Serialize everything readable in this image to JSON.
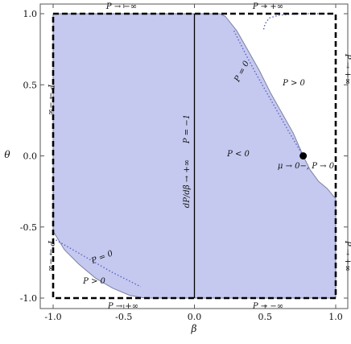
{
  "chart_data": {
    "type": "area",
    "title": "",
    "xlabel": "β",
    "ylabel": "θ",
    "xlim": [
      -1.0,
      1.0
    ],
    "ylim": [
      -1.0,
      1.0
    ],
    "grid": false,
    "x_ticks": [
      "-1.0",
      "-0.5",
      "0.0",
      "0.5",
      "1.0"
    ],
    "y_ticks": [
      "-1.0",
      "-0.5",
      "0.0",
      "0.5",
      "1.0"
    ],
    "colors": {
      "region_fill": "#c5c9ef",
      "region_edge": "#7b80a3",
      "dotted_curve": "#5a63c4",
      "ink": "#000000"
    },
    "shaded_region_boundary": [
      [
        -1.0,
        1.0
      ],
      [
        0.18,
        1.0
      ],
      [
        0.22,
        0.98
      ],
      [
        0.3,
        0.88
      ],
      [
        0.38,
        0.74
      ],
      [
        0.46,
        0.6
      ],
      [
        0.54,
        0.44
      ],
      [
        0.62,
        0.3
      ],
      [
        0.7,
        0.16
      ],
      [
        0.77,
        0.0
      ],
      [
        0.82,
        -0.1
      ],
      [
        0.88,
        -0.18
      ],
      [
        0.94,
        -0.23
      ],
      [
        0.99,
        -0.29
      ],
      [
        1.0,
        -0.3
      ],
      [
        1.0,
        -1.0
      ],
      [
        0.0,
        -1.0
      ],
      [
        -0.35,
        -1.0
      ],
      [
        -0.46,
        -0.98
      ],
      [
        -0.58,
        -0.93
      ],
      [
        -0.7,
        -0.86
      ],
      [
        -0.82,
        -0.76
      ],
      [
        -0.92,
        -0.66
      ],
      [
        -1.0,
        -0.53
      ]
    ],
    "dotted_curves": [
      {
        "points": [
          [
            0.49,
            0.89
          ],
          [
            0.5,
            0.93
          ],
          [
            0.53,
            0.97
          ],
          [
            0.6,
            0.99
          ],
          [
            0.72,
            1.0
          ],
          [
            0.86,
            1.0
          ],
          [
            0.98,
            1.0
          ]
        ]
      },
      {
        "points": [
          [
            0.28,
            0.88
          ],
          [
            0.36,
            0.72
          ],
          [
            0.44,
            0.57
          ],
          [
            0.52,
            0.43
          ],
          [
            0.6,
            0.29
          ],
          [
            0.68,
            0.15
          ],
          [
            0.77,
            0.0
          ]
        ]
      },
      {
        "points": [
          [
            -1.0,
            -0.58
          ],
          [
            -0.86,
            -0.66
          ],
          [
            -0.72,
            -0.74
          ],
          [
            -0.58,
            -0.82
          ],
          [
            -0.46,
            -0.88
          ],
          [
            -0.38,
            -0.92
          ]
        ]
      }
    ],
    "vertical_line_x": 0.0,
    "special_point": {
      "x": 0.77,
      "y": 0.0
    },
    "annotations": {
      "top_left": "P → −∞",
      "top_right": "P → +∞",
      "bottom_left": "P → +∞",
      "bottom_right": "P → −∞",
      "left_top": "P → −∞",
      "left_bottom": "P → −∞",
      "right_top": "P → +∞",
      "right_bottom": "P → +∞",
      "center_vertical": "dP/dβ → +∞",
      "p_minus_one": "P = −1",
      "p_zero_upper": "P = 0",
      "p_zero_lower": "P = 0",
      "p_gt_zero_upper": "P > 0",
      "p_gt_zero_lower": "P > 0",
      "p_lt_zero": "P < 0",
      "mu_label": "μ → 0−, P → 0"
    }
  }
}
